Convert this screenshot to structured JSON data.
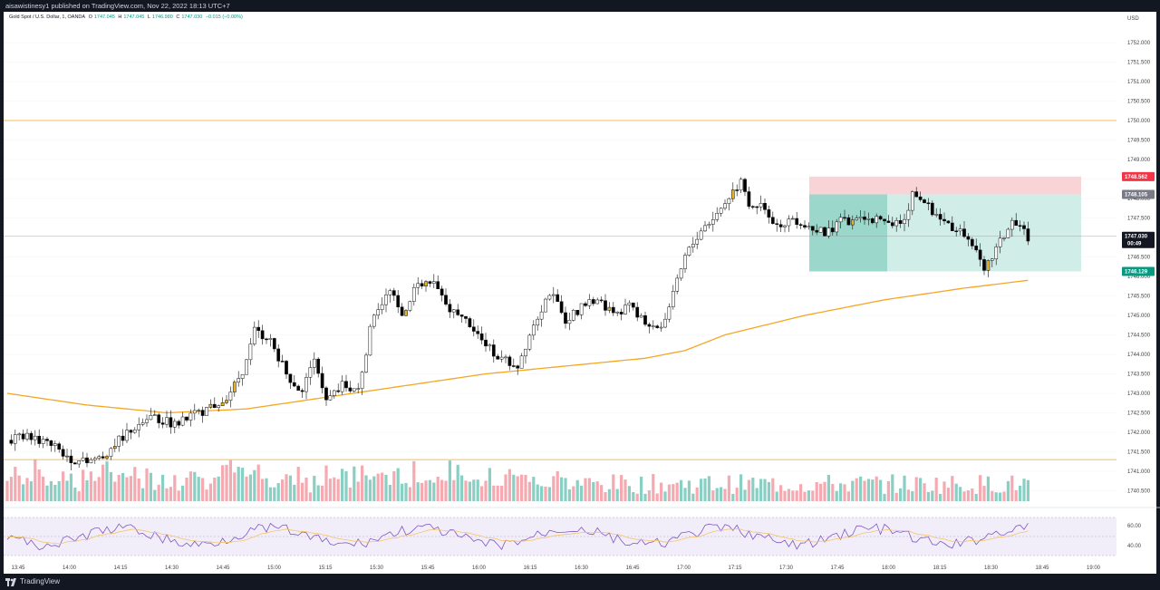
{
  "header": {
    "published": "aisawistinesy1 published on TradingView.com, Nov 22, 2022 18:13 UTC+7"
  },
  "footer": {
    "brand": "TradingView"
  },
  "legend": {
    "symbol": "Gold Spot / U.S. Dollar, 1, OANDA",
    "o_label": "O",
    "o": "1747.045",
    "h_label": "H",
    "h": "1747.045",
    "l_label": "L",
    "l": "1746.980",
    "c_label": "C",
    "c": "1747.030",
    "change": "−0.015 (−0.00%)"
  },
  "colors": {
    "up": "#089981",
    "down": "#f23645",
    "ma": "#f5a623",
    "rsi": "#7e57c2",
    "hline": "#f5a623"
  },
  "chart_data": {
    "type": "candlestick",
    "currency": "USD",
    "price_ticks": [
      "1752.000",
      "1751.500",
      "1751.000",
      "1750.500",
      "1750.000",
      "1749.500",
      "1749.000",
      "1748.500",
      "1748.000",
      "1747.500",
      "1747.000",
      "1746.500",
      "1746.000",
      "1745.500",
      "1745.000",
      "1744.500",
      "1744.000",
      "1743.500",
      "1743.000",
      "1742.500",
      "1742.000",
      "1741.500",
      "1741.000",
      "1740.500"
    ],
    "time_ticks": [
      "13:45",
      "14:00",
      "14:15",
      "14:30",
      "14:45",
      "15:00",
      "15:15",
      "15:30",
      "15:45",
      "16:00",
      "16:15",
      "16:30",
      "16:45",
      "17:00",
      "17:15",
      "17:30",
      "17:45",
      "18:00",
      "18:15",
      "18:30",
      "18:45",
      "19:00"
    ],
    "rsi_ticks": [
      "60.00",
      "40.00"
    ],
    "last_price": "1747.030",
    "countdown": "00:49",
    "stop_level": "1748.562",
    "entry_level": "1748.105",
    "target_level": "1746.129",
    "hlines": [
      1750.0,
      1741.3
    ],
    "close_path": [
      [
        0,
        1741.8
      ],
      [
        6,
        1741.9
      ],
      [
        12,
        1741.6
      ],
      [
        18,
        1741.2
      ],
      [
        24,
        1741.4
      ],
      [
        30,
        1742.0
      ],
      [
        36,
        1742.4
      ],
      [
        42,
        1742.2
      ],
      [
        48,
        1742.5
      ],
      [
        54,
        1742.8
      ],
      [
        57,
        1743.2
      ],
      [
        60,
        1743.8
      ],
      [
        62,
        1744.6
      ],
      [
        66,
        1744.4
      ],
      [
        70,
        1743.5
      ],
      [
        74,
        1743.0
      ],
      [
        77,
        1744.0
      ],
      [
        80,
        1742.8
      ],
      [
        84,
        1743.2
      ],
      [
        88,
        1743.1
      ],
      [
        92,
        1745.1
      ],
      [
        96,
        1745.6
      ],
      [
        99,
        1745.0
      ],
      [
        103,
        1745.9
      ],
      [
        107,
        1745.8
      ],
      [
        111,
        1745.1
      ],
      [
        116,
        1744.8
      ],
      [
        120,
        1744.2
      ],
      [
        124,
        1743.9
      ],
      [
        128,
        1743.7
      ],
      [
        132,
        1744.8
      ],
      [
        136,
        1745.6
      ],
      [
        140,
        1744.9
      ],
      [
        144,
        1745.2
      ],
      [
        148,
        1745.4
      ],
      [
        152,
        1745.1
      ],
      [
        156,
        1745.2
      ],
      [
        160,
        1744.8
      ],
      [
        164,
        1744.7
      ],
      [
        167,
        1745.5
      ],
      [
        170,
        1746.5
      ],
      [
        174,
        1747.2
      ],
      [
        178,
        1747.6
      ],
      [
        182,
        1748.2
      ],
      [
        184,
        1748.4
      ],
      [
        186,
        1747.9
      ],
      [
        190,
        1747.8
      ],
      [
        193,
        1747.3
      ],
      [
        197,
        1747.5
      ],
      [
        201,
        1747.3
      ],
      [
        205,
        1747.1
      ],
      [
        209,
        1747.4
      ],
      [
        213,
        1747.4
      ],
      [
        217,
        1747.5
      ],
      [
        221,
        1747.3
      ],
      [
        225,
        1747.5
      ],
      [
        227,
        1748.1
      ],
      [
        230,
        1747.9
      ],
      [
        234,
        1747.5
      ],
      [
        238,
        1747.2
      ],
      [
        242,
        1746.9
      ],
      [
        245,
        1746.1
      ],
      [
        248,
        1746.7
      ],
      [
        252,
        1747.4
      ],
      [
        256,
        1747.0
      ]
    ],
    "ma_path": [
      [
        0,
        1743.0
      ],
      [
        20,
        1742.7
      ],
      [
        40,
        1742.5
      ],
      [
        60,
        1742.6
      ],
      [
        80,
        1742.9
      ],
      [
        100,
        1743.2
      ],
      [
        120,
        1743.5
      ],
      [
        140,
        1743.7
      ],
      [
        160,
        1743.9
      ],
      [
        170,
        1744.1
      ],
      [
        180,
        1744.5
      ],
      [
        200,
        1745.0
      ],
      [
        220,
        1745.4
      ],
      [
        240,
        1745.7
      ],
      [
        256,
        1745.9
      ]
    ]
  }
}
